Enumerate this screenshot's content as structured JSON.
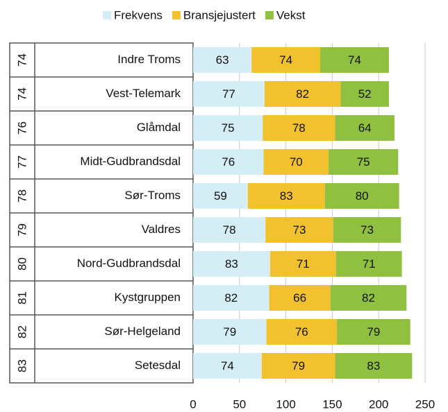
{
  "chart_data": {
    "type": "stacked-bar-horizontal",
    "categories": [
      "Indre Troms",
      "Vest-Telemark",
      "Glåmdal",
      "Midt-Gudbrandsdal",
      "Sør-Troms",
      "Valdres",
      "Nord-Gudbrandsdal",
      "Kystgruppen",
      "Sør-Helgeland",
      "Setesdal"
    ],
    "ranks": [
      74,
      74,
      76,
      77,
      78,
      79,
      80,
      81,
      82,
      83
    ],
    "series": [
      {
        "name": "Frekvens",
        "color": "#d5edf4",
        "values": [
          63,
          77,
          75,
          76,
          59,
          78,
          83,
          82,
          79,
          74
        ]
      },
      {
        "name": "Bransjejustert",
        "color": "#f2c12e",
        "values": [
          74,
          82,
          78,
          70,
          83,
          73,
          71,
          66,
          76,
          79
        ]
      },
      {
        "name": "Vekst",
        "color": "#8fc03f",
        "values": [
          74,
          52,
          64,
          75,
          80,
          73,
          71,
          82,
          79,
          83
        ]
      }
    ],
    "xlim": [
      0,
      250
    ],
    "xticks": [
      0,
      50,
      100,
      150,
      200,
      250
    ],
    "grid": true,
    "legend": "top"
  }
}
